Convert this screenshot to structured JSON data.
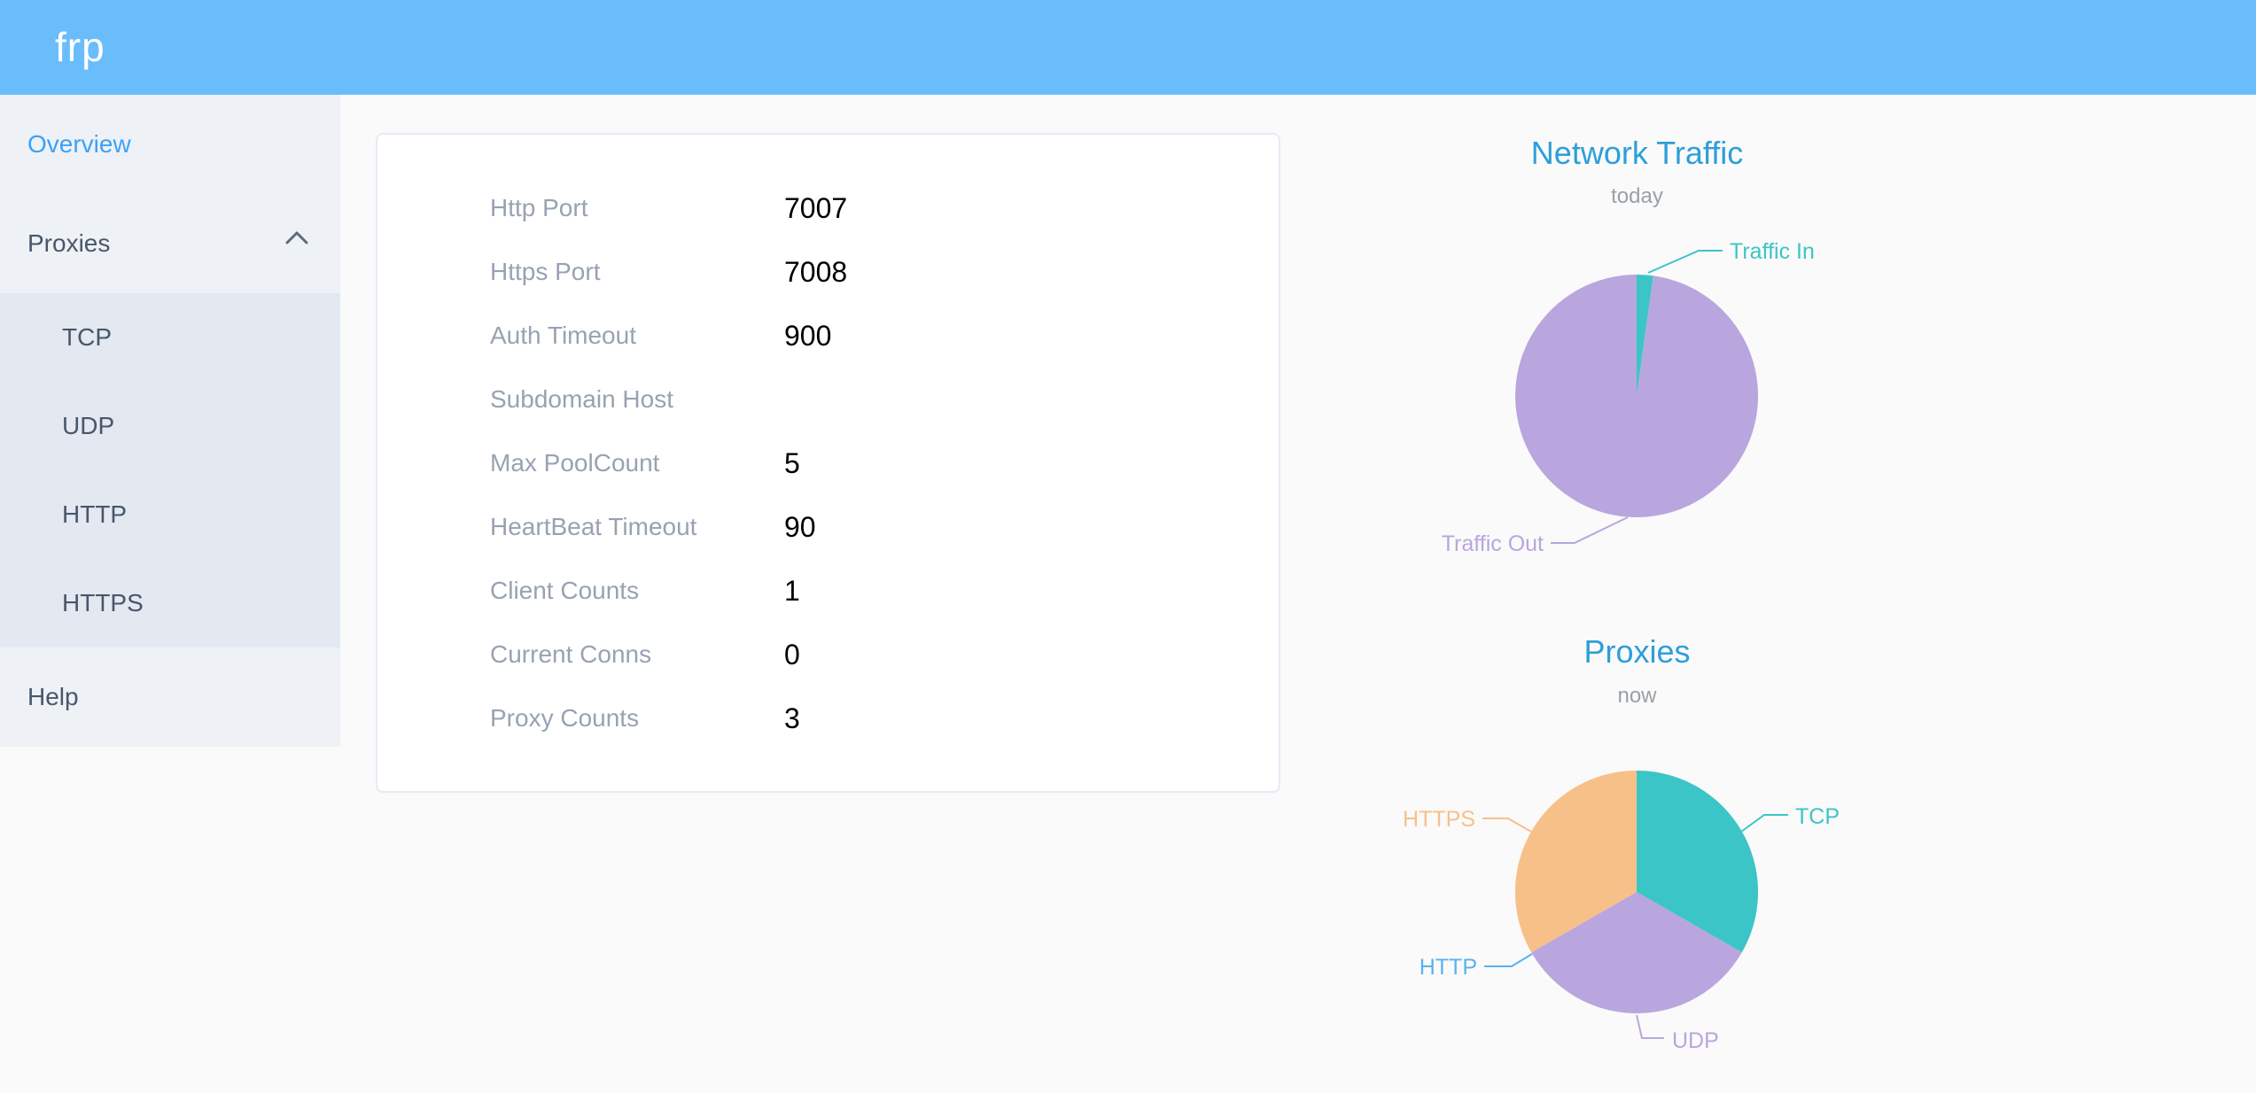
{
  "header": {
    "logo": "frp"
  },
  "sidebar": {
    "overview": "Overview",
    "proxies": "Proxies",
    "proxy_types": [
      "TCP",
      "UDP",
      "HTTP",
      "HTTPS"
    ],
    "help": "Help"
  },
  "server_info": {
    "rows": [
      {
        "label": "Http Port",
        "value": "7007"
      },
      {
        "label": "Https Port",
        "value": "7008"
      },
      {
        "label": "Auth Timeout",
        "value": "900"
      },
      {
        "label": "Subdomain Host",
        "value": ""
      },
      {
        "label": "Max PoolCount",
        "value": "5"
      },
      {
        "label": "HeartBeat Timeout",
        "value": "90"
      },
      {
        "label": "Client Counts",
        "value": "1"
      },
      {
        "label": "Current Conns",
        "value": "0"
      },
      {
        "label": "Proxy Counts",
        "value": "3"
      }
    ]
  },
  "chart_data": [
    {
      "type": "pie",
      "title": "Network Traffic",
      "subtitle": "today",
      "legend_position": "none",
      "slices": [
        {
          "label": "Traffic In",
          "percent": 2.2,
          "color": "#3cc5c7"
        },
        {
          "label": "Traffic Out",
          "percent": 97.8,
          "color": "#b9a6de"
        }
      ]
    },
    {
      "type": "pie",
      "title": "Proxies",
      "subtitle": "now",
      "legend_position": "none",
      "slices": [
        {
          "label": "TCP",
          "percent": 33.3,
          "color": "#3cc5c7"
        },
        {
          "label": "UDP",
          "percent": 33.4,
          "color": "#b9a6de"
        },
        {
          "label": "HTTP",
          "percent": 0,
          "color": "#5ab1ef"
        },
        {
          "label": "HTTPS",
          "percent": 33.3,
          "color": "#f8c089"
        }
      ]
    }
  ],
  "colors": {
    "header_bg": "#6abdfb",
    "sidebar_bg": "#eef1f6",
    "submenu_bg": "#e4e8f1",
    "menu_active": "#3aa2f8",
    "menu_text": "#48576a",
    "page_bg": "#fafafa",
    "chart_title_blue": "#2d9fd8",
    "chart_subtitle_gray": "#9aa0a6"
  }
}
